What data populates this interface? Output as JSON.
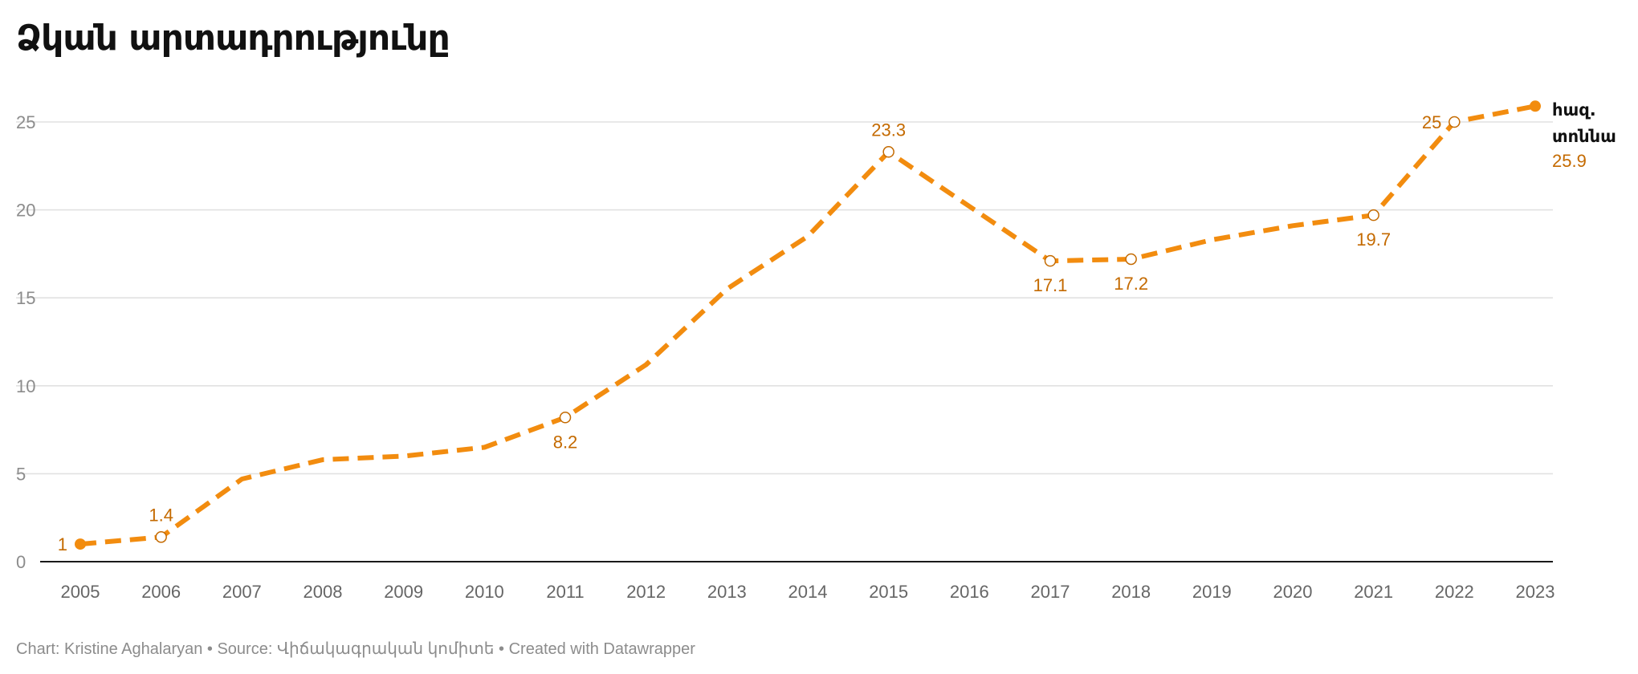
{
  "title": "Ձկան արտադրությունը",
  "footer": {
    "chart_by": "Chart: Kristine Aghalaryan",
    "separator": " • ",
    "source": "Source: Վիճակագրական կոմիտե",
    "created_with": "Created with Datawrapper"
  },
  "colors": {
    "line": "#f28c0f",
    "label": "#c46a00",
    "grid": "#e1e1e1",
    "axis": "#1a1a1a",
    "tick": "#8c8c8c"
  },
  "chart_data": {
    "type": "line",
    "title": "Ձկան արտադրությունը",
    "xlabel": "",
    "ylabel": "",
    "x": [
      "2005",
      "2006",
      "2007",
      "2008",
      "2009",
      "2010",
      "2011",
      "2012",
      "2013",
      "2014",
      "2015",
      "2016",
      "2017",
      "2018",
      "2019",
      "2020",
      "2021",
      "2022",
      "2023"
    ],
    "y_ticks": [
      0,
      5,
      10,
      15,
      20,
      25
    ],
    "ylim": [
      0,
      25.9
    ],
    "grid": true,
    "line_style": "dashed",
    "series": [
      {
        "name": "հազ. տոննա",
        "name_lines": [
          "հազ.",
          "տոննա"
        ],
        "values": [
          1,
          1.4,
          4.7,
          5.8,
          6.0,
          6.5,
          8.2,
          11.2,
          15.5,
          18.5,
          23.3,
          20.2,
          17.1,
          17.2,
          18.3,
          19.1,
          19.7,
          25,
          25.9
        ],
        "end_value_label": "25.9"
      }
    ],
    "data_labels": [
      {
        "x": "2005",
        "text": "1",
        "position": "left"
      },
      {
        "x": "2006",
        "text": "1.4",
        "position": "above"
      },
      {
        "x": "2011",
        "text": "8.2",
        "position": "below"
      },
      {
        "x": "2015",
        "text": "23.3",
        "position": "above"
      },
      {
        "x": "2017",
        "text": "17.1",
        "position": "below"
      },
      {
        "x": "2018",
        "text": "17.2",
        "position": "below"
      },
      {
        "x": "2021",
        "text": "19.7",
        "position": "below"
      },
      {
        "x": "2022",
        "text": "25",
        "position": "left"
      }
    ],
    "hollow_markers": [
      "2006",
      "2011",
      "2015",
      "2017",
      "2018",
      "2021",
      "2022"
    ],
    "filled_markers": [
      "2005",
      "2023"
    ]
  }
}
